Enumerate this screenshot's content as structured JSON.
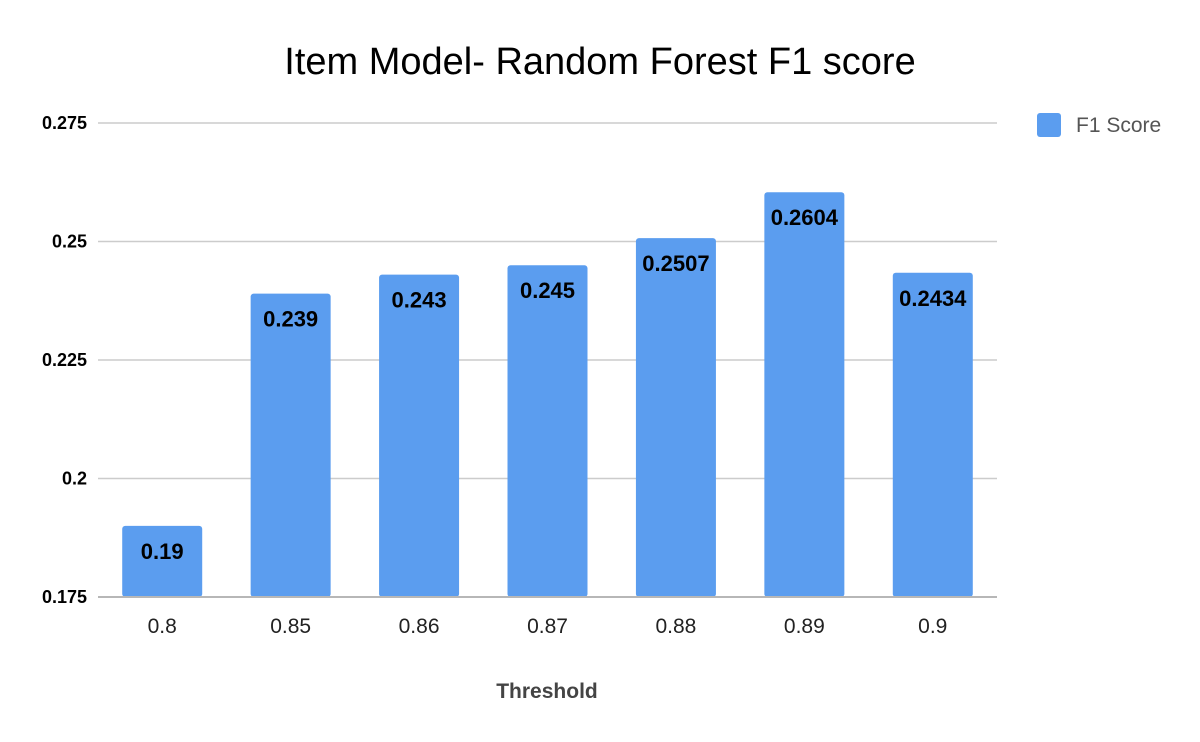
{
  "chart_data": {
    "type": "bar",
    "title": "Item Model- Random Forest F1 score",
    "xlabel": "Threshold",
    "ylabel": "",
    "categories": [
      "0.8",
      "0.85",
      "0.86",
      "0.87",
      "0.88",
      "0.89",
      "0.9"
    ],
    "series": [
      {
        "name": "F1 Score",
        "color": "#5b9def",
        "values": [
          0.19,
          0.239,
          0.243,
          0.245,
          0.2507,
          0.2604,
          0.2434
        ],
        "data_labels": [
          "0.19",
          "0.239",
          "0.243",
          "0.245",
          "0.2507",
          "0.2604",
          "0.2434"
        ]
      }
    ],
    "ylim": [
      0.175,
      0.275
    ],
    "yticks": [
      0.175,
      0.2,
      0.225,
      0.25,
      0.275
    ],
    "ytick_labels": [
      "0.175",
      "0.2",
      "0.225",
      "0.25",
      "0.275"
    ],
    "grid": true,
    "legend_position": "top-right"
  }
}
